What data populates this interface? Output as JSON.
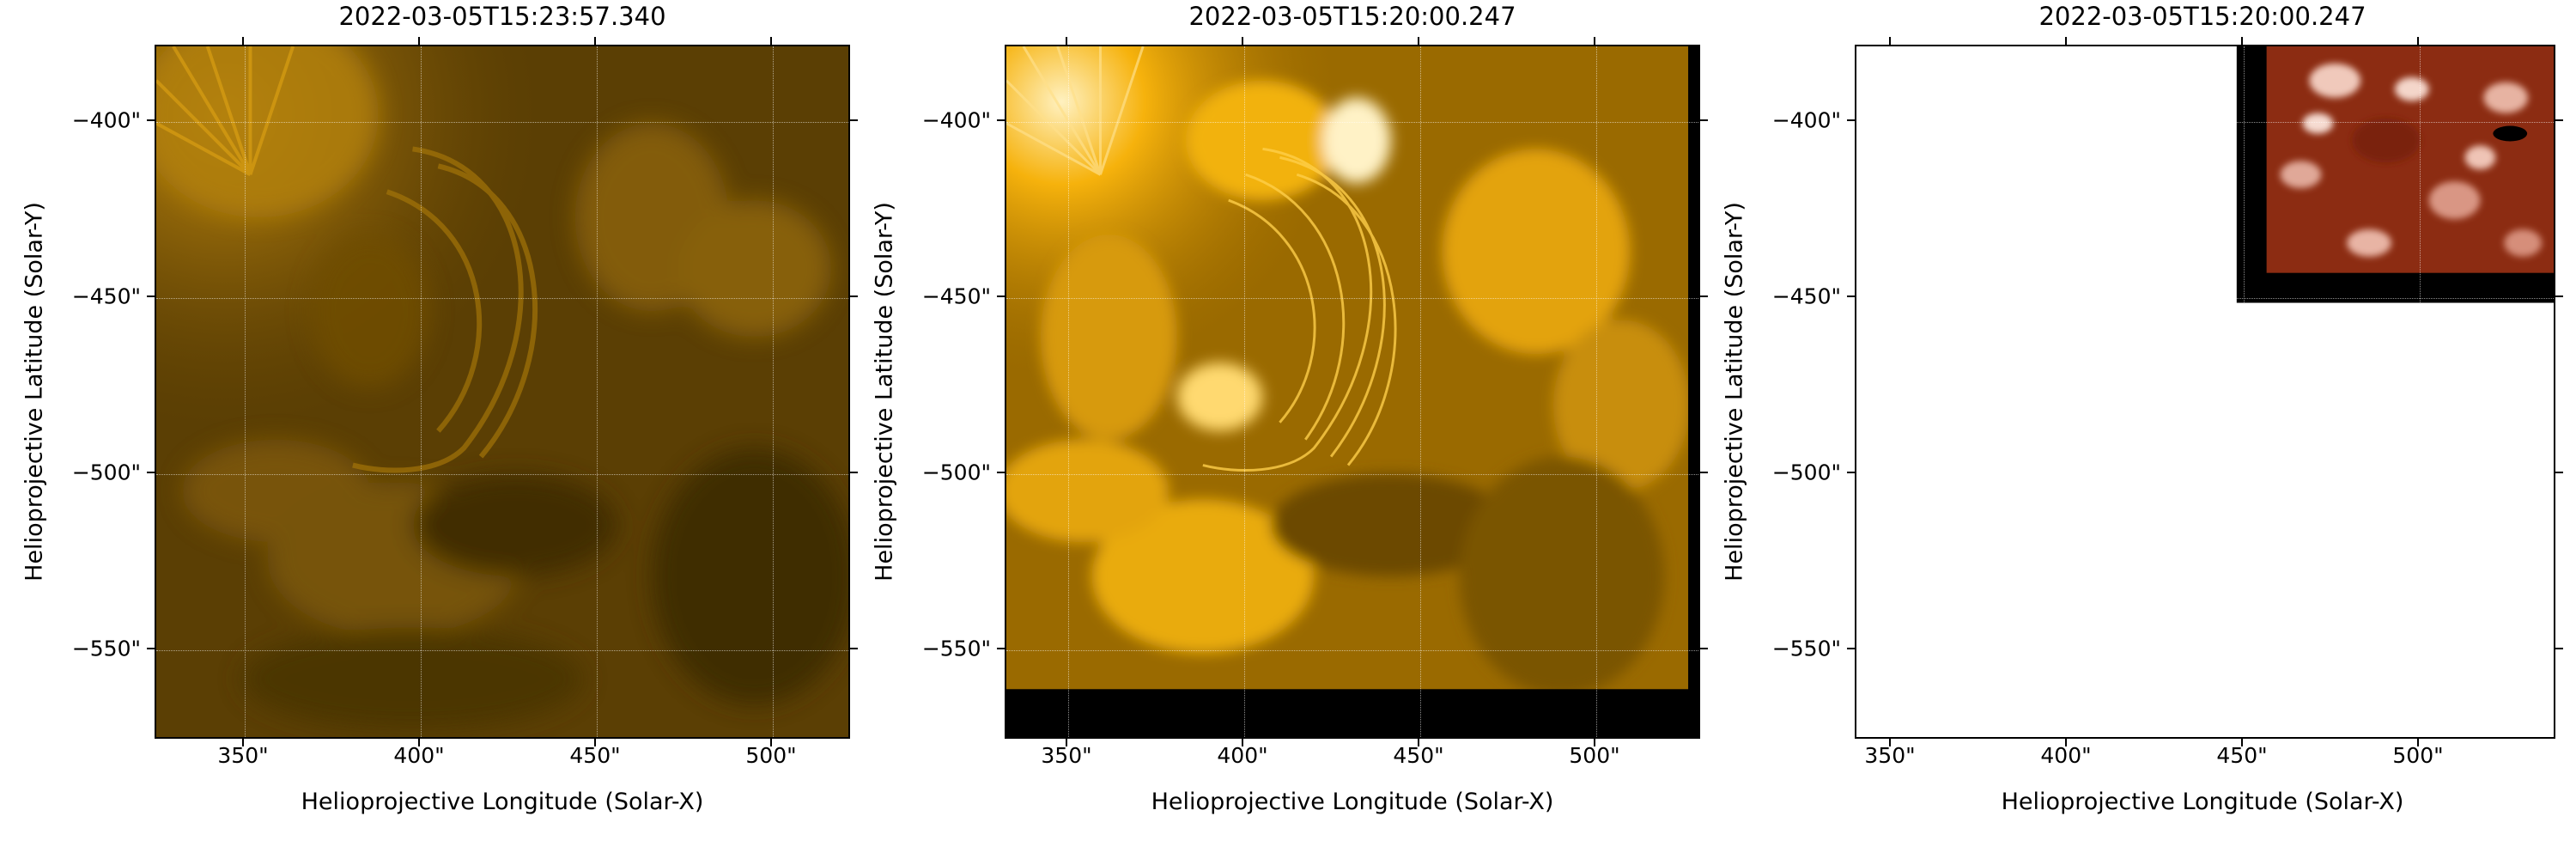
{
  "panels": [
    {
      "title": "2022-03-05T15:23:57.340",
      "xlabel": "Helioprojective Longitude (Solar-X)",
      "ylabel": "Helioprojective Latitude (Solar-Y)",
      "image": "eui-hri-blurred",
      "colormap": "sdoaia171-gold"
    },
    {
      "title": "2022-03-05T15:20:00.247",
      "xlabel": "Helioprojective Longitude (Solar-X)",
      "ylabel": "Helioprojective Latitude (Solar-Y)",
      "image": "eui-hri-sharp-with-black-border",
      "colormap": "sdoaia171-gold"
    },
    {
      "title": "2022-03-05T15:20:00.247",
      "xlabel": "Helioprojective Longitude (Solar-X)",
      "ylabel": "Helioprojective Latitude (Solar-Y)",
      "image": "reprojected-red-corner-on-white",
      "colormap": "red-brown"
    }
  ],
  "xticks": [
    "350\"",
    "400\"",
    "450\"",
    "500\""
  ],
  "yticks": [
    "−400\"",
    "−450\"",
    "−500\"",
    "−550\""
  ],
  "colors": {
    "gold": "#f5a800",
    "dark_gold": "#3d2a00",
    "red": "#8b2a10",
    "grid": "#ffffff"
  }
}
